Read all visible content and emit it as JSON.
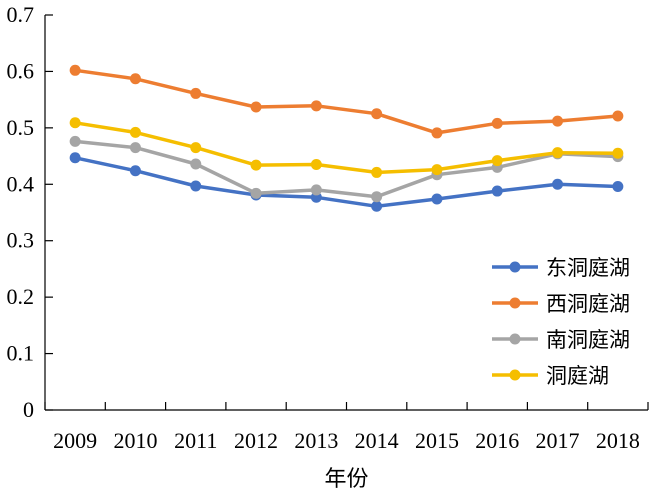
{
  "chart_data": {
    "type": "line",
    "title": "",
    "xlabel": "年份",
    "ylabel": "",
    "categories": [
      "2009",
      "2010",
      "2011",
      "2012",
      "2013",
      "2014",
      "2015",
      "2016",
      "2017",
      "2018"
    ],
    "ylim": [
      0,
      0.7
    ],
    "yticks": [
      "0",
      "0.1",
      "0.2",
      "0.3",
      "0.4",
      "0.5",
      "0.6",
      "0.7"
    ],
    "grid": false,
    "legend_position": "right",
    "series": [
      {
        "name": "东洞庭湖",
        "color": "#4472C4",
        "values": [
          0.447,
          0.424,
          0.397,
          0.381,
          0.377,
          0.361,
          0.374,
          0.388,
          0.4,
          0.396
        ]
      },
      {
        "name": "西洞庭湖",
        "color": "#ED7D31",
        "values": [
          0.602,
          0.587,
          0.561,
          0.537,
          0.539,
          0.525,
          0.491,
          0.508,
          0.512,
          0.521
        ]
      },
      {
        "name": "南洞庭湖",
        "color": "#A5A5A5",
        "values": [
          0.476,
          0.465,
          0.436,
          0.384,
          0.39,
          0.378,
          0.417,
          0.43,
          0.454,
          0.449
        ]
      },
      {
        "name": "洞庭湖",
        "color": "#F5BE00",
        "values": [
          0.509,
          0.492,
          0.465,
          0.434,
          0.435,
          0.421,
          0.426,
          0.442,
          0.456,
          0.455
        ]
      }
    ]
  }
}
